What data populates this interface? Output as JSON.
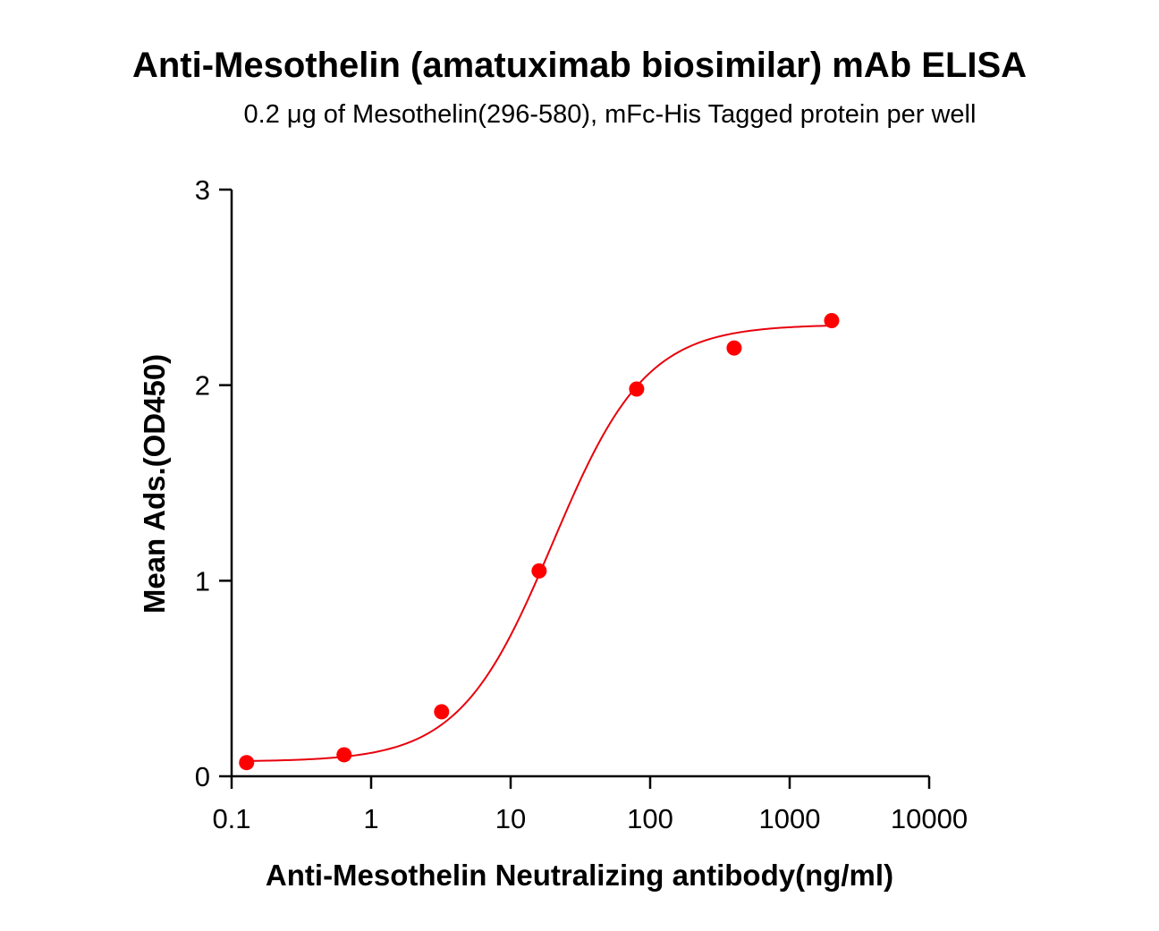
{
  "chart_data": {
    "type": "scatter",
    "title": "Anti-Mesothelin (amatuximab biosimilar) mAb ELISA",
    "subtitle": "0.2 μg of Mesothelin(296-580), mFc-His Tagged protein per well",
    "xlabel": "Anti-Mesothelin Neutralizing antibody(ng/ml)",
    "ylabel": "Mean Ads.(OD450)",
    "x_scale": "log",
    "xlim": [
      0.1,
      10000
    ],
    "ylim": [
      0,
      3
    ],
    "x_ticks": [
      "0.1",
      "1",
      "10",
      "100",
      "1000",
      "10000"
    ],
    "y_ticks": [
      "0",
      "1",
      "2",
      "3"
    ],
    "grid": false,
    "series": [
      {
        "points": [
          {
            "x": 0.128,
            "y": 0.07
          },
          {
            "x": 0.64,
            "y": 0.11
          },
          {
            "x": 3.2,
            "y": 0.33
          },
          {
            "x": 16,
            "y": 1.05
          },
          {
            "x": 80,
            "y": 1.98
          },
          {
            "x": 400,
            "y": 2.19
          },
          {
            "x": 2000,
            "y": 2.33
          }
        ],
        "fit": {
          "model": "4PL",
          "bottom": 0.075,
          "top": 2.31,
          "ec50": 20,
          "hill": 1.3
        }
      }
    ],
    "colors": {
      "points": "#ff0000",
      "curve": "#e8000b",
      "axes": "#000000"
    }
  }
}
